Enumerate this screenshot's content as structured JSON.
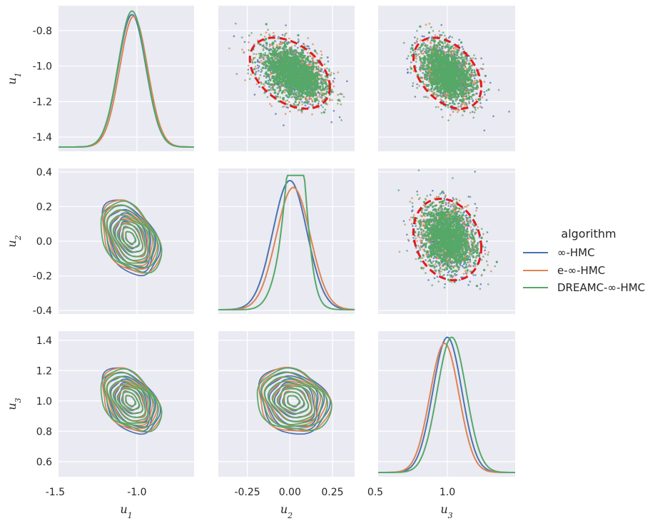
{
  "chart_data": {
    "type": "pairplot",
    "variables": [
      "u1",
      "u2",
      "u3"
    ],
    "legend": {
      "title": "algorithm",
      "placement": "right",
      "entries": [
        {
          "name": "∞-HMC",
          "color": "#4c72b0"
        },
        {
          "name": "e-∞-HMC",
          "color": "#dd8452"
        },
        {
          "name": "DREAMC-∞-HMC",
          "color": "#55a868"
        }
      ]
    },
    "axes": {
      "u1": {
        "label_base": "u",
        "label_sub": "1",
        "lim": [
          -1.48,
          -0.65
        ],
        "ylim": [
          -1.48,
          -0.66
        ],
        "xticks": [
          {
            "v": -1.5,
            "t": "-1.5"
          },
          {
            "v": -1.0,
            "t": "-1.0"
          }
        ],
        "yticks": [
          {
            "v": -0.8,
            "t": "-0.8"
          },
          {
            "v": -1.0,
            "t": "-1.0"
          },
          {
            "v": -1.2,
            "t": "-1.2"
          },
          {
            "v": -1.4,
            "t": "-1.4"
          }
        ]
      },
      "u2": {
        "label_base": "u",
        "label_sub": "2",
        "lim": [
          -0.42,
          0.38
        ],
        "ylim": [
          -0.42,
          0.42
        ],
        "xticks": [
          {
            "v": -0.25,
            "t": "-0.25"
          },
          {
            "v": 0.0,
            "t": "0.00"
          },
          {
            "v": 0.25,
            "t": "0.25"
          }
        ],
        "yticks": [
          {
            "v": 0.4,
            "t": "0.4"
          },
          {
            "v": 0.2,
            "t": "0.2"
          },
          {
            "v": 0.0,
            "t": "0.0"
          },
          {
            "v": -0.2,
            "t": "-0.2"
          },
          {
            "v": -0.4,
            "t": "-0.4"
          }
        ]
      },
      "u3": {
        "label_base": "u",
        "label_sub": "3",
        "lim": [
          0.52,
          1.47
        ],
        "ylim": [
          0.5,
          1.46
        ],
        "xticks": [
          {
            "v": 0.5,
            "t": "0.5"
          },
          {
            "v": 1.0,
            "t": "1.0"
          }
        ],
        "yticks": [
          {
            "v": 1.4,
            "t": "1.4"
          },
          {
            "v": 1.2,
            "t": "1.2"
          },
          {
            "v": 1.0,
            "t": "1.0"
          },
          {
            "v": 0.8,
            "t": "0.8"
          },
          {
            "v": 0.6,
            "t": "0.6"
          }
        ]
      }
    },
    "distributions": {
      "u1": {
        "mean": -1.04,
        "sd": 0.085
      },
      "u2": {
        "mean": 0.02,
        "sd": 0.1
      },
      "u3": {
        "mean": 1.0,
        "sd": 0.1
      },
      "corr_u1_u2": -0.4,
      "corr_u1_u3": -0.4,
      "corr_u2_u3": -0.2
    },
    "diagonal_kde_peaks": {
      "u1": [
        {
          "series": "∞-HMC",
          "peak_x": -1.03,
          "peak_y": -0.71
        },
        {
          "series": "e-∞-HMC",
          "peak_x": -1.02,
          "peak_y": -0.72
        },
        {
          "series": "DREAMC-∞-HMC",
          "peak_x": -1.03,
          "peak_y": -0.69
        }
      ],
      "u2": [
        {
          "series": "∞-HMC",
          "peak_x": 0.0,
          "peak_y": 0.35
        },
        {
          "series": "e-∞-HMC",
          "peak_x": 0.02,
          "peak_y": 0.31
        },
        {
          "series": "DREAMC-∞-HMC",
          "peak_x": 0.03,
          "peak_y": 0.38
        }
      ],
      "u3": [
        {
          "series": "∞-HMC",
          "peak_x": 1.0,
          "peak_y": 1.42
        },
        {
          "series": "e-∞-HMC",
          "peak_x": 0.98,
          "peak_y": 1.38
        },
        {
          "series": "DREAMC-∞-HMC",
          "peak_x": 1.03,
          "peak_y": 1.42
        }
      ]
    },
    "reference_ellipses": [
      {
        "x": "u2",
        "y": "u1",
        "center": [
          0.0,
          -1.04
        ],
        "color": "#e41a1c",
        "style": "dashed"
      },
      {
        "x": "u3",
        "y": "u1",
        "center": [
          1.0,
          -1.04
        ],
        "color": "#e41a1c",
        "style": "dashed"
      },
      {
        "x": "u3",
        "y": "u2",
        "center": [
          1.0,
          0.01
        ],
        "color": "#e41a1c",
        "style": "dashed"
      }
    ],
    "panel_types": {
      "diagonal": "kde",
      "upper": "scatter",
      "lower": "kde-contour"
    },
    "grid": true,
    "background": "#eaeaf2"
  }
}
